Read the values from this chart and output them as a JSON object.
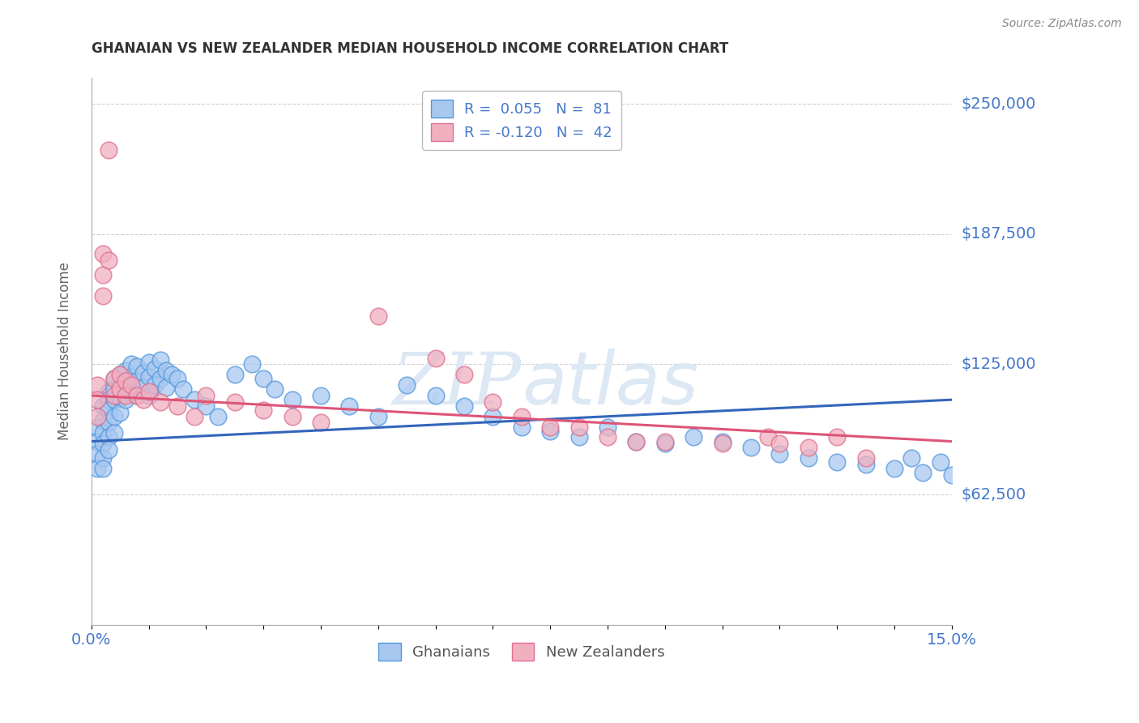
{
  "title": "GHANAIAN VS NEW ZEALANDER MEDIAN HOUSEHOLD INCOME CORRELATION CHART",
  "source": "Source: ZipAtlas.com",
  "ylabel": "Median Household Income",
  "xmin": 0.0,
  "xmax": 0.15,
  "ymin": 0,
  "ymax": 262500,
  "yticks": [
    0,
    62500,
    125000,
    187500,
    250000
  ],
  "ytick_labels": [
    "",
    "$62,500",
    "$125,000",
    "$187,500",
    "$250,000"
  ],
  "ghanaian_color": "#a8c8f0",
  "ghanaian_edge_color": "#5599dd",
  "nz_color": "#f0b0c0",
  "nz_edge_color": "#e07090",
  "trend_blue": "#3366bb",
  "trend_pink": "#dd5577",
  "watermark_color": "#dde8f5",
  "background_color": "#ffffff",
  "grid_color": "#cccccc",
  "axis_label_color": "#4477cc",
  "title_color": "#333333",
  "source_color": "#888888",
  "trend_blue_y0": 88000,
  "trend_blue_y1": 108000,
  "trend_pink_y0": 110000,
  "trend_pink_y1": 88000,
  "ghanaian_x": [
    0.001,
    0.001,
    0.001,
    0.001,
    0.002,
    0.002,
    0.002,
    0.002,
    0.002,
    0.002,
    0.003,
    0.003,
    0.003,
    0.003,
    0.003,
    0.003,
    0.004,
    0.004,
    0.004,
    0.004,
    0.004,
    0.005,
    0.005,
    0.005,
    0.005,
    0.006,
    0.006,
    0.006,
    0.007,
    0.007,
    0.007,
    0.008,
    0.008,
    0.008,
    0.009,
    0.009,
    0.01,
    0.01,
    0.01,
    0.011,
    0.011,
    0.012,
    0.012,
    0.013,
    0.013,
    0.014,
    0.015,
    0.016,
    0.018,
    0.02,
    0.022,
    0.025,
    0.028,
    0.03,
    0.032,
    0.035,
    0.04,
    0.045,
    0.05,
    0.055,
    0.06,
    0.065,
    0.07,
    0.075,
    0.08,
    0.085,
    0.09,
    0.095,
    0.1,
    0.105,
    0.11,
    0.115,
    0.12,
    0.125,
    0.13,
    0.135,
    0.14,
    0.143,
    0.145,
    0.148,
    0.15
  ],
  "ghanaian_y": [
    95000,
    88000,
    82000,
    75000,
    105000,
    98000,
    92000,
    87000,
    80000,
    75000,
    112000,
    108000,
    103000,
    97000,
    90000,
    84000,
    118000,
    113000,
    108000,
    100000,
    92000,
    120000,
    115000,
    109000,
    102000,
    122000,
    116000,
    108000,
    125000,
    119000,
    111000,
    124000,
    117000,
    110000,
    121000,
    114000,
    126000,
    119000,
    110000,
    123000,
    115000,
    127000,
    118000,
    122000,
    114000,
    120000,
    118000,
    113000,
    108000,
    105000,
    100000,
    120000,
    125000,
    118000,
    113000,
    108000,
    110000,
    105000,
    100000,
    115000,
    110000,
    105000,
    100000,
    95000,
    93000,
    90000,
    95000,
    88000,
    87000,
    90000,
    88000,
    85000,
    82000,
    80000,
    78000,
    77000,
    75000,
    80000,
    73000,
    78000,
    72000
  ],
  "nz_x": [
    0.001,
    0.001,
    0.001,
    0.002,
    0.002,
    0.002,
    0.003,
    0.003,
    0.004,
    0.004,
    0.005,
    0.005,
    0.006,
    0.006,
    0.007,
    0.008,
    0.009,
    0.01,
    0.012,
    0.015,
    0.018,
    0.02,
    0.025,
    0.03,
    0.035,
    0.04,
    0.05,
    0.06,
    0.065,
    0.07,
    0.075,
    0.08,
    0.085,
    0.09,
    0.095,
    0.1,
    0.11,
    0.118,
    0.12,
    0.125,
    0.13,
    0.135
  ],
  "nz_y": [
    115000,
    108000,
    100000,
    178000,
    168000,
    158000,
    228000,
    175000,
    118000,
    110000,
    120000,
    113000,
    117000,
    110000,
    115000,
    110000,
    108000,
    112000,
    107000,
    105000,
    100000,
    110000,
    107000,
    103000,
    100000,
    97000,
    148000,
    128000,
    120000,
    107000,
    100000,
    95000,
    95000,
    90000,
    88000,
    88000,
    87000,
    90000,
    87000,
    85000,
    90000,
    80000
  ]
}
